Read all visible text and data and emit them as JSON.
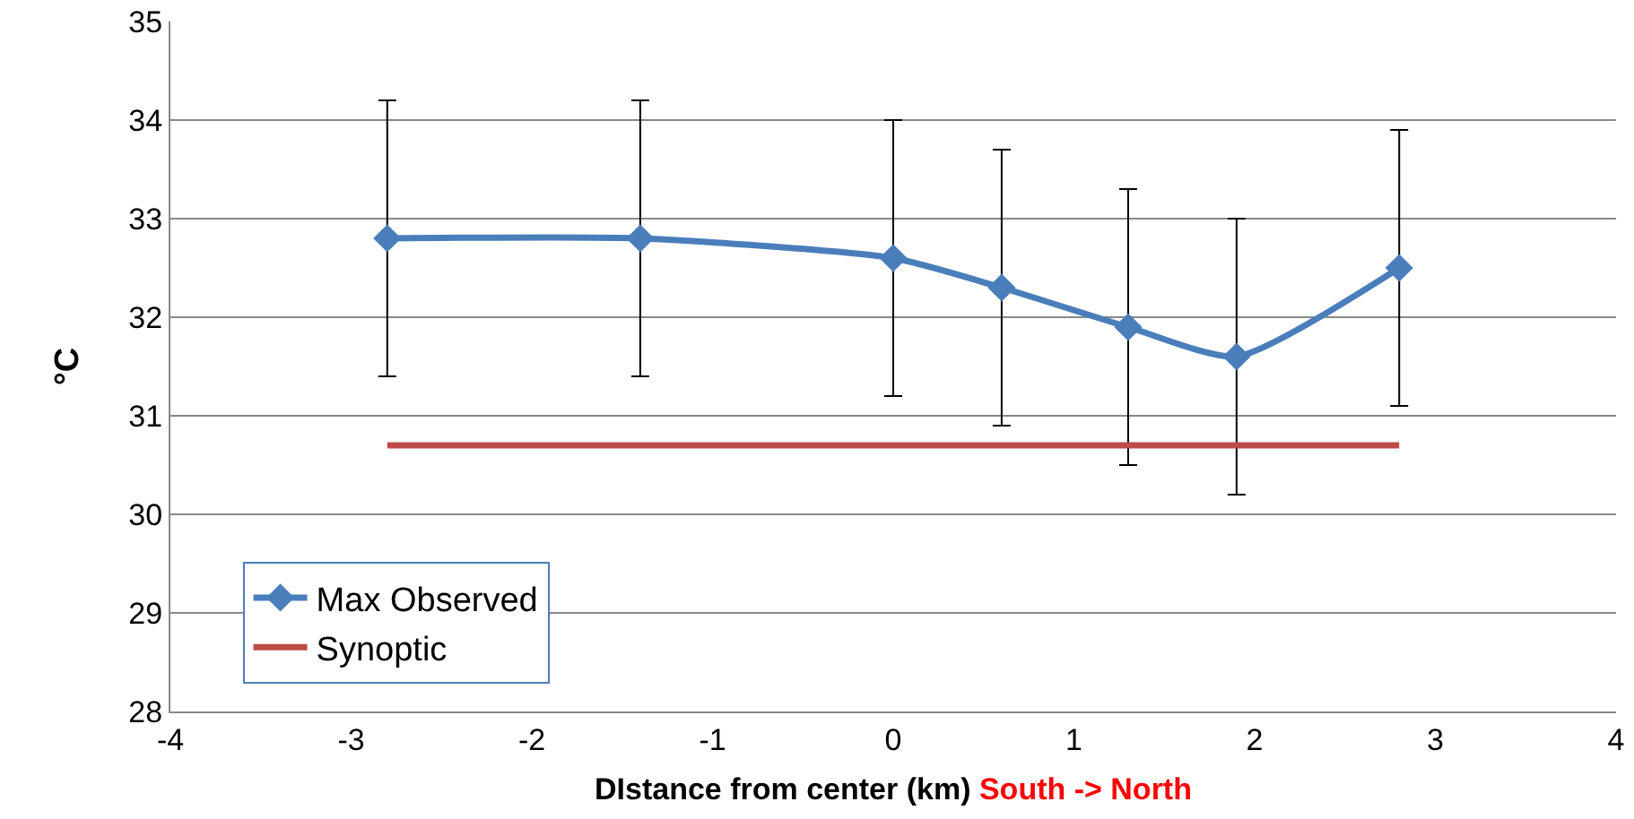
{
  "chart_data": {
    "type": "line",
    "xlabel": "DIstance from center (km)",
    "ylabel": "°C",
    "annotations": [
      "South -> North"
    ],
    "x": [
      -2.8,
      -1.4,
      0,
      0.6,
      1.3,
      1.9,
      2.8
    ],
    "series": [
      {
        "name": "Max Observed",
        "color": "#4a7ebb",
        "marker": "diamond",
        "values": [
          32.8,
          32.8,
          32.6,
          32.3,
          31.9,
          31.6,
          32.5
        ],
        "errors": [
          1.4,
          1.4,
          1.4,
          1.4,
          1.4,
          1.4,
          1.4
        ]
      },
      {
        "name": "Synoptic",
        "color": "#be4b48",
        "marker": "none",
        "x": [
          -2.8,
          2.8
        ],
        "values": [
          30.7,
          30.7
        ]
      }
    ],
    "xlim": [
      -4,
      4
    ],
    "xticks": [
      -4,
      -3,
      -2,
      -1,
      0,
      1,
      2,
      3,
      4
    ],
    "ylim": [
      28,
      35
    ],
    "yticks": [
      28,
      29,
      30,
      31,
      32,
      33,
      34,
      35
    ],
    "grid": "y",
    "legend": "bottom left"
  }
}
